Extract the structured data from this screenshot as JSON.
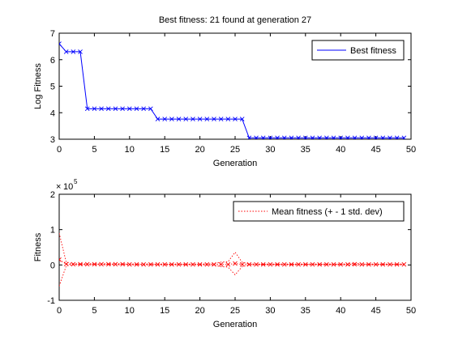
{
  "chart_data": [
    {
      "type": "line",
      "title": "Best fitness: 21 found at generation 27",
      "xlabel": "Generation",
      "ylabel": "Log Fitness",
      "xlim": [
        0,
        50
      ],
      "ylim": [
        3,
        7
      ],
      "xticks": [
        0,
        5,
        10,
        15,
        20,
        25,
        30,
        35,
        40,
        45,
        50
      ],
      "yticks": [
        3,
        4,
        5,
        6,
        7
      ],
      "legend_position": "top-right",
      "series": [
        {
          "name": "Best fitness",
          "color": "#0000ff",
          "marker": "x",
          "x": [
            0,
            1,
            2,
            3,
            4,
            5,
            6,
            7,
            8,
            9,
            10,
            11,
            12,
            13,
            14,
            15,
            16,
            17,
            18,
            19,
            20,
            21,
            22,
            23,
            24,
            25,
            26,
            27,
            28,
            29,
            30,
            31,
            32,
            33,
            34,
            35,
            36,
            37,
            38,
            39,
            40,
            41,
            42,
            43,
            44,
            45,
            46,
            47,
            48,
            49
          ],
          "y": [
            6.6,
            6.3,
            6.3,
            6.3,
            4.15,
            4.15,
            4.15,
            4.15,
            4.15,
            4.15,
            4.15,
            4.15,
            4.15,
            4.15,
            3.76,
            3.76,
            3.76,
            3.76,
            3.76,
            3.76,
            3.76,
            3.76,
            3.76,
            3.76,
            3.76,
            3.76,
            3.76,
            3.05,
            3.05,
            3.05,
            3.05,
            3.05,
            3.05,
            3.05,
            3.05,
            3.05,
            3.05,
            3.05,
            3.05,
            3.05,
            3.05,
            3.05,
            3.05,
            3.05,
            3.05,
            3.05,
            3.05,
            3.05,
            3.05,
            3.05
          ]
        }
      ]
    },
    {
      "type": "line",
      "title": "",
      "xlabel": "Generation",
      "ylabel": "Fitness",
      "xlim": [
        0,
        50
      ],
      "ylim": [
        -1,
        2
      ],
      "xticks": [
        0,
        5,
        10,
        15,
        20,
        25,
        30,
        35,
        40,
        45,
        50
      ],
      "yticks": [
        -1,
        0,
        1,
        2
      ],
      "y_exponent_base": "10",
      "y_exponent": "5",
      "y_scale": 100000,
      "legend_position": "top-right",
      "series": [
        {
          "name": "Mean fitness (+ - 1 std. dev)",
          "color": "#ff0000",
          "marker": "x",
          "line_style": "dotted",
          "x": [
            0,
            1,
            2,
            3,
            4,
            5,
            6,
            7,
            8,
            9,
            10,
            11,
            12,
            13,
            14,
            15,
            16,
            17,
            18,
            19,
            20,
            21,
            22,
            23,
            24,
            25,
            26,
            27,
            28,
            29,
            30,
            31,
            32,
            33,
            34,
            35,
            36,
            37,
            38,
            39,
            40,
            41,
            42,
            43,
            44,
            45,
            46,
            47,
            48,
            49
          ],
          "mean": [
            15000,
            2500,
            2000,
            2000,
            2000,
            2000,
            2000,
            2000,
            2000,
            2000,
            1500,
            1500,
            1500,
            1500,
            1500,
            1500,
            1500,
            1500,
            1500,
            1500,
            1500,
            1500,
            1500,
            1500,
            1500,
            4000,
            1500,
            1500,
            1500,
            1500,
            1500,
            1500,
            1500,
            1500,
            1500,
            1500,
            1500,
            1500,
            1500,
            1500,
            1500,
            1500,
            2000,
            1500,
            1500,
            1500,
            1500,
            1500,
            1500,
            1500
          ],
          "std": [
            75000,
            5000,
            1500,
            1500,
            1500,
            1500,
            1500,
            1500,
            1500,
            1500,
            1000,
            1500,
            1500,
            1500,
            1000,
            1000,
            1000,
            1000,
            1000,
            1000,
            1500,
            1500,
            2000,
            6500,
            7500,
            32000,
            6000,
            1500,
            1000,
            1000,
            1000,
            1000,
            1000,
            1000,
            1000,
            1000,
            1000,
            1000,
            1000,
            1000,
            1000,
            1500,
            3000,
            1500,
            1000,
            1000,
            1000,
            1000,
            1000,
            1000
          ]
        }
      ]
    }
  ]
}
